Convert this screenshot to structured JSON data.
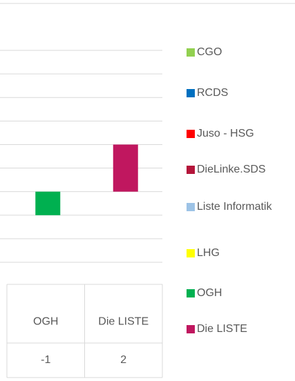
{
  "chart_data": {
    "type": "bar",
    "categories": [
      "OGH",
      "Die LISTE"
    ],
    "series": [
      {
        "name": "CGO",
        "color": "#92d050",
        "values": [
          null,
          null
        ]
      },
      {
        "name": "RCDS",
        "color": "#0070c0",
        "values": [
          null,
          null
        ]
      },
      {
        "name": "Juso - HSG",
        "color": "#ff0000",
        "values": [
          null,
          null
        ]
      },
      {
        "name": "DieLinke.SDS",
        "color": "#b4153a",
        "values": [
          null,
          null
        ]
      },
      {
        "name": "Liste Informatik",
        "color": "#9dc3e6",
        "values": [
          null,
          null
        ]
      },
      {
        "name": "LHG",
        "color": "#ffff00",
        "values": [
          null,
          null
        ]
      },
      {
        "name": "OGH",
        "color": "#00b050",
        "values": [
          -1,
          null
        ]
      },
      {
        "name": "Die LISTE",
        "color": "#c0175f",
        "values": [
          null,
          2
        ]
      }
    ],
    "ylim": [
      -3,
      6
    ],
    "yticks": [
      -3,
      -2,
      -1,
      0,
      1,
      2,
      3,
      4,
      5,
      6
    ],
    "grid": true,
    "legend": "right"
  }
}
